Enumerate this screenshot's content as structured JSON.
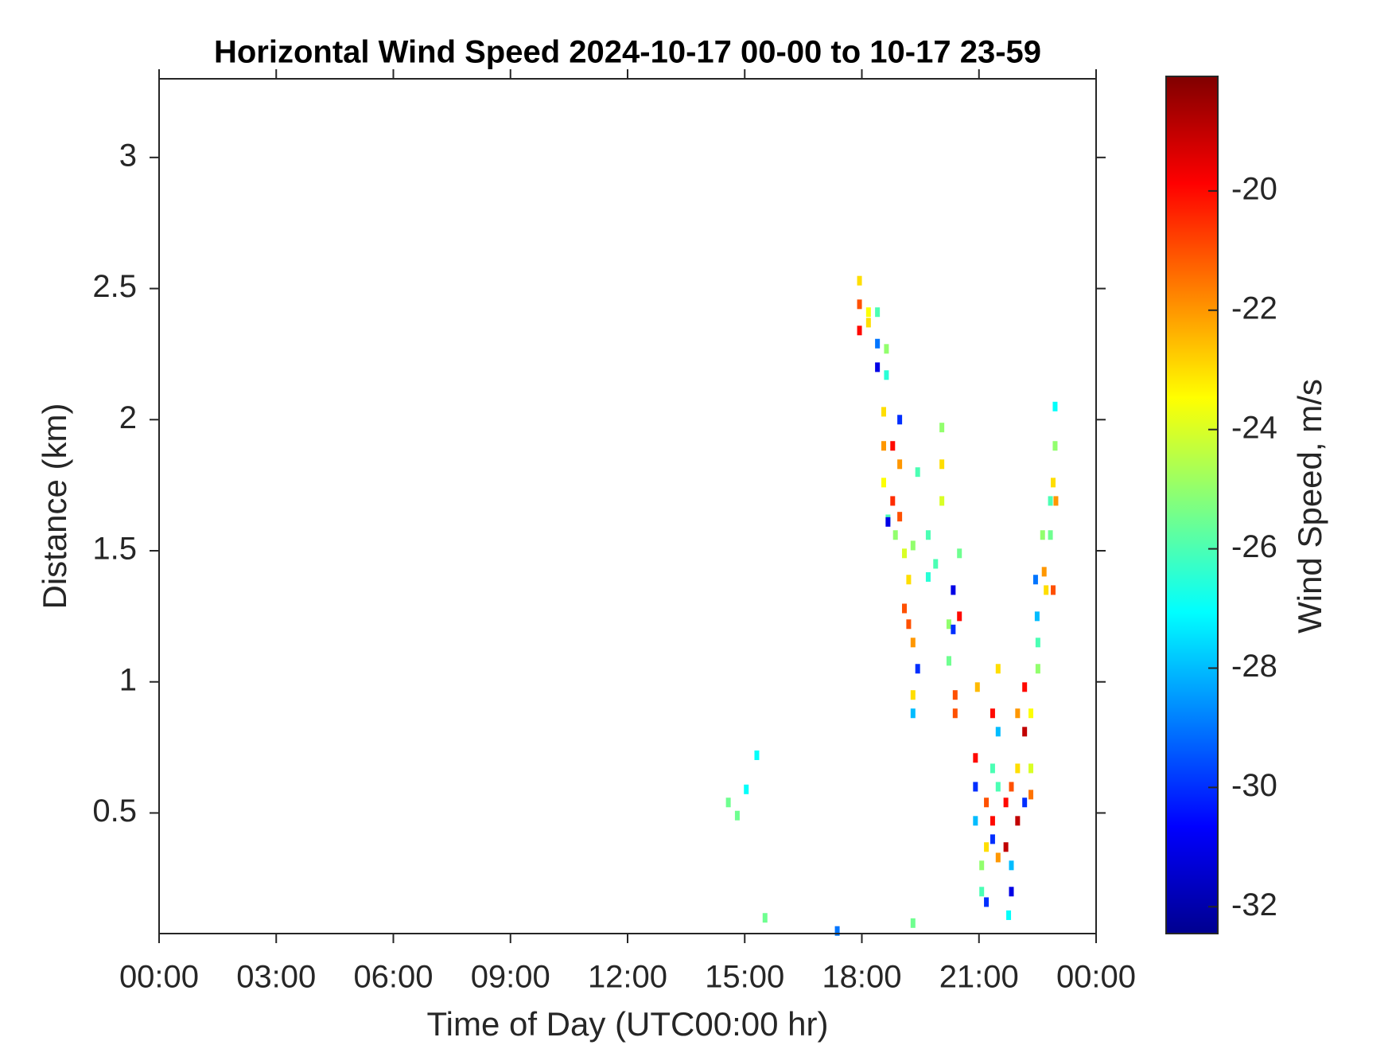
{
  "chart_data": {
    "type": "heatmap",
    "title": "Horizontal Wind Speed 2024-10-17 00-00 to 10-17 23-59",
    "x_label": "Time of Day (UTC00:00 hr)",
    "y_label": "Distance (km)",
    "colorbar_label": "Wind Speed, m/s",
    "colormap": "jet",
    "xlim": [
      0,
      24
    ],
    "xticks": [
      {
        "value": 0,
        "label": "00:00"
      },
      {
        "value": 3,
        "label": "03:00"
      },
      {
        "value": 6,
        "label": "06:00"
      },
      {
        "value": 9,
        "label": "09:00"
      },
      {
        "value": 12,
        "label": "12:00"
      },
      {
        "value": 15,
        "label": "15:00"
      },
      {
        "value": 18,
        "label": "18:00"
      },
      {
        "value": 21,
        "label": "21:00"
      },
      {
        "value": 24,
        "label": "00:00"
      }
    ],
    "ylim": [
      0.04,
      3.3
    ],
    "yticks": [
      0.5,
      1,
      1.5,
      2,
      2.5,
      3
    ],
    "clim": [
      -32.45,
      -18.08
    ],
    "cticks": [
      -32,
      -30,
      -28,
      -26,
      -24,
      -22,
      -20
    ],
    "x": [
      15.31,
      15.04,
      14.58,
      14.81,
      15.52,
      17.37,
      19.31,
      17.94,
      17.94,
      17.94,
      18.17,
      18.17,
      18.4,
      18.4,
      18.4,
      18.63,
      18.63,
      18.56,
      18.56,
      18.56,
      18.67,
      18.67,
      18.79,
      18.79,
      18.86,
      18.97,
      18.97,
      18.97,
      19.09,
      19.09,
      19.2,
      19.2,
      19.31,
      19.31,
      19.31,
      19.31,
      19.43,
      19.43,
      19.7,
      19.7,
      19.89,
      20.05,
      20.05,
      20.05,
      20.23,
      20.23,
      20.34,
      20.34,
      20.39,
      20.39,
      20.5,
      20.5,
      20.91,
      20.91,
      20.91,
      20.96,
      21.07,
      21.07,
      21.19,
      21.19,
      21.19,
      21.35,
      21.35,
      21.35,
      21.35,
      21.49,
      21.49,
      21.49,
      21.49,
      21.69,
      21.69,
      21.83,
      21.83,
      21.83,
      21.76,
      21.99,
      21.99,
      21.99,
      22.17,
      22.17,
      22.17,
      22.33,
      22.33,
      22.33,
      22.45,
      22.49,
      22.51,
      22.51,
      22.63,
      22.67,
      22.72,
      22.83,
      22.83,
      22.9,
      22.9,
      22.95,
      22.95,
      22.97
    ],
    "y": [
      0.72,
      0.59,
      0.54,
      0.49,
      0.1,
      0.05,
      0.08,
      2.53,
      2.44,
      2.34,
      2.41,
      2.37,
      2.41,
      2.29,
      2.2,
      2.27,
      2.17,
      2.03,
      1.9,
      1.76,
      1.62,
      1.61,
      1.9,
      1.69,
      1.56,
      2.0,
      1.83,
      1.63,
      1.49,
      1.28,
      1.39,
      1.22,
      1.52,
      1.15,
      0.95,
      0.88,
      1.8,
      1.05,
      1.56,
      1.4,
      1.45,
      1.97,
      1.83,
      1.69,
      1.22,
      1.08,
      1.35,
      1.2,
      0.95,
      0.88,
      1.25,
      1.49,
      0.71,
      0.6,
      0.47,
      0.98,
      0.3,
      0.2,
      0.54,
      0.37,
      0.16,
      0.88,
      0.67,
      0.47,
      0.4,
      1.05,
      0.81,
      0.6,
      0.33,
      0.54,
      0.37,
      0.6,
      0.3,
      0.2,
      0.11,
      0.88,
      0.67,
      0.47,
      0.98,
      0.81,
      0.54,
      0.88,
      0.67,
      0.57,
      1.39,
      1.25,
      1.15,
      1.05,
      1.56,
      1.42,
      1.35,
      1.69,
      1.56,
      1.76,
      1.35,
      2.05,
      1.9,
      1.69
    ],
    "values": [
      -27,
      -27,
      -25.5,
      -25.5,
      -25.5,
      -29,
      -25.5,
      -23,
      -21,
      -20,
      -23.5,
      -23,
      -26,
      -29,
      -31,
      -25,
      -26.5,
      -23,
      -22,
      -23.5,
      -26,
      -31,
      -20,
      -20.5,
      -25,
      -30,
      -22,
      -21,
      -24,
      -21,
      -23,
      -21,
      -25,
      -22,
      -23,
      -28,
      -26,
      -30,
      -26,
      -26.5,
      -26,
      -25,
      -23,
      -24,
      -25,
      -25.5,
      -31,
      -30,
      -21,
      -21,
      -20,
      -25.5,
      -20,
      -30,
      -28,
      -22.5,
      -25,
      -26,
      -21,
      -23,
      -30,
      -20,
      -26,
      -20,
      -30,
      -23,
      -28,
      -26,
      -22,
      -20,
      -19,
      -21,
      -28,
      -31,
      -27,
      -22,
      -23,
      -19,
      -20,
      -19,
      -30,
      -23.5,
      -24,
      -21.5,
      -29,
      -28,
      -26,
      -25,
      -25,
      -22,
      -23,
      -26,
      -25.5,
      -23,
      -21,
      -27,
      -25,
      -22
    ]
  }
}
